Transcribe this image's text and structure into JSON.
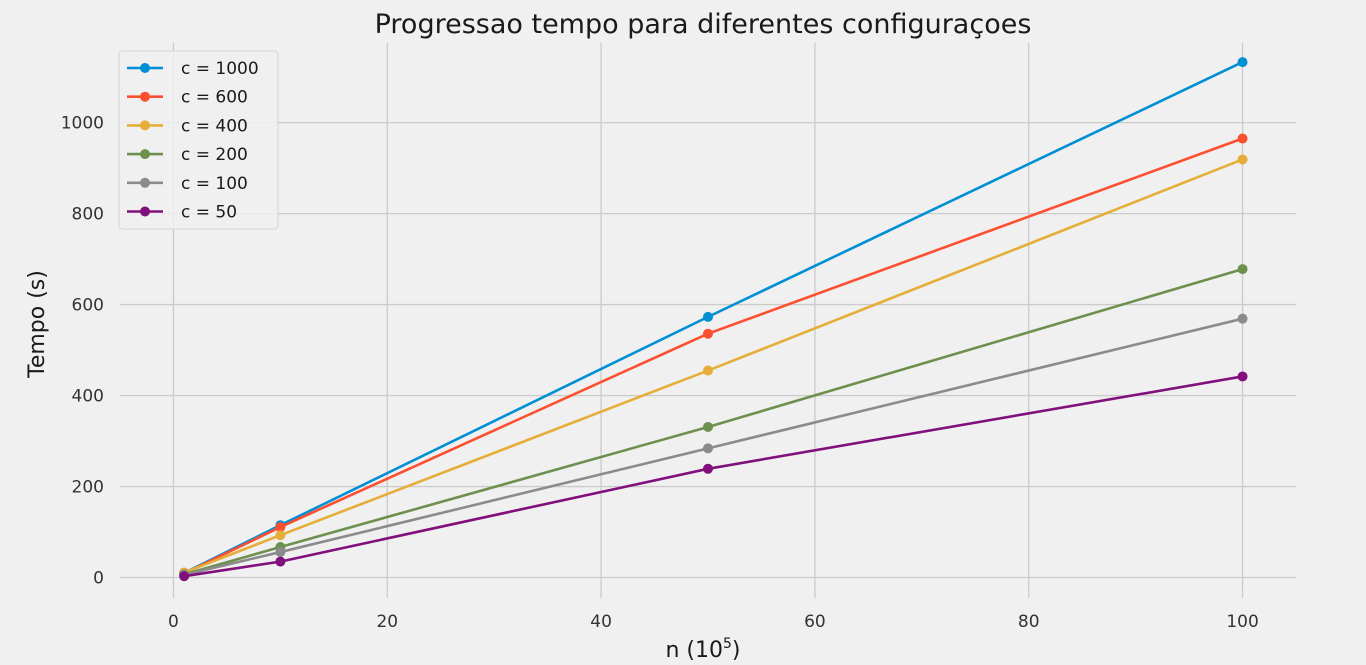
{
  "chart_data": {
    "type": "line",
    "title": "Progressao tempo para diferentes configuraçoes",
    "xlabel_base": "n (10",
    "xlabel_exp": "5",
    "xlabel_close": ")",
    "ylabel": "Tempo (s)",
    "xlim": [
      -5,
      105
    ],
    "ylim": [
      -45,
      1175
    ],
    "xticks": [
      0,
      20,
      40,
      60,
      80,
      100
    ],
    "yticks": [
      0,
      200,
      400,
      600,
      800,
      1000
    ],
    "grid": true,
    "legend_position": "top-left",
    "x": [
      1,
      10,
      50,
      100
    ],
    "series": [
      {
        "name": "c = 1000",
        "color": "#008fd5",
        "values": [
          10,
          115,
          573,
          1133
        ]
      },
      {
        "name": "c = 600",
        "color": "#fc4f30",
        "values": [
          9,
          111,
          536,
          965
        ]
      },
      {
        "name": "c = 400",
        "color": "#e5ae38",
        "values": [
          11,
          93,
          455,
          919
        ]
      },
      {
        "name": "c = 200",
        "color": "#6d904f",
        "values": [
          7,
          67,
          331,
          678
        ]
      },
      {
        "name": "c = 100",
        "color": "#8b8b8b",
        "values": [
          6,
          56,
          284,
          569
        ]
      },
      {
        "name": "c = 50",
        "color": "#810f7c",
        "values": [
          3,
          35,
          239,
          442
        ]
      }
    ]
  }
}
